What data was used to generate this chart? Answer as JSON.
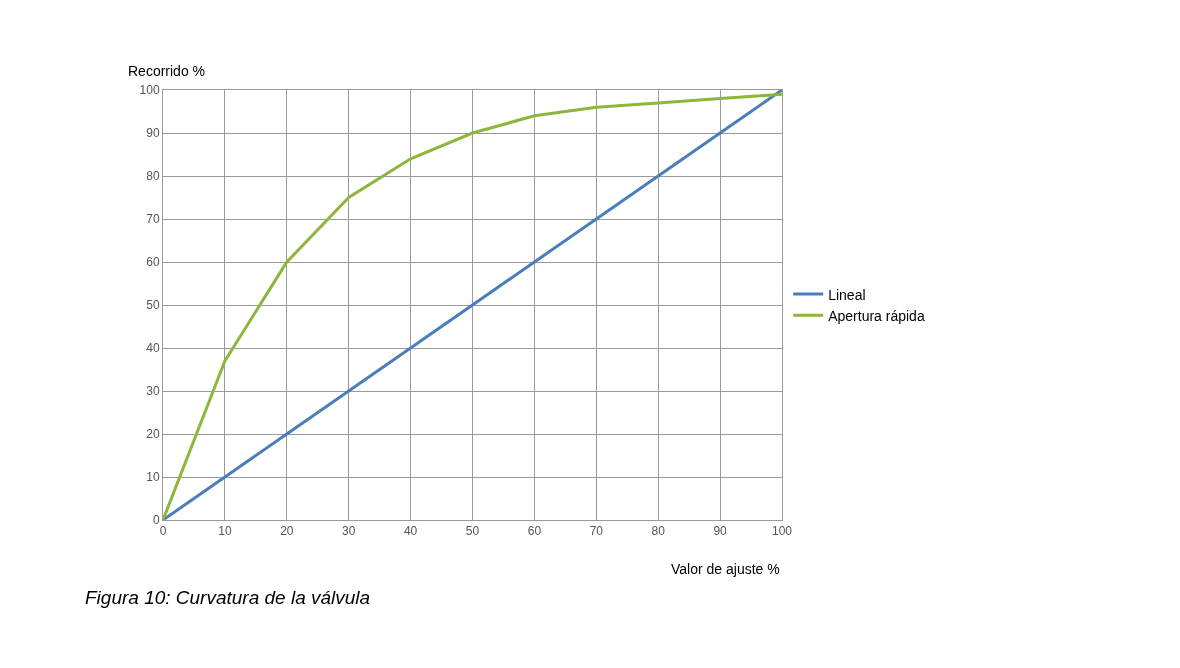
{
  "chart_data": {
    "type": "line",
    "xlabel": "Valor de ajuste %",
    "ylabel": "Recorrido %",
    "annotations": [
      "Figura 10: Curvatura de la válvula"
    ],
    "x": [
      0,
      10,
      20,
      30,
      40,
      50,
      60,
      70,
      80,
      90,
      100
    ],
    "series": [
      {
        "name": "Lineal",
        "color": "#4a7ebb",
        "values": [
          0,
          10,
          20,
          30,
          40,
          50,
          60,
          70,
          80,
          90,
          100
        ]
      },
      {
        "name": "Apertura rápida",
        "color": "#8db63c",
        "values": [
          0,
          37,
          60,
          75,
          84,
          90,
          94,
          96,
          97,
          98,
          99
        ]
      }
    ],
    "xlim": [
      0,
      100
    ],
    "ylim": [
      0,
      100
    ],
    "xticks": [
      0,
      10,
      20,
      30,
      40,
      50,
      60,
      70,
      80,
      90,
      100
    ],
    "yticks": [
      0,
      10,
      20,
      30,
      40,
      50,
      60,
      70,
      80,
      90,
      100
    ],
    "grid": true,
    "legend": "right"
  }
}
